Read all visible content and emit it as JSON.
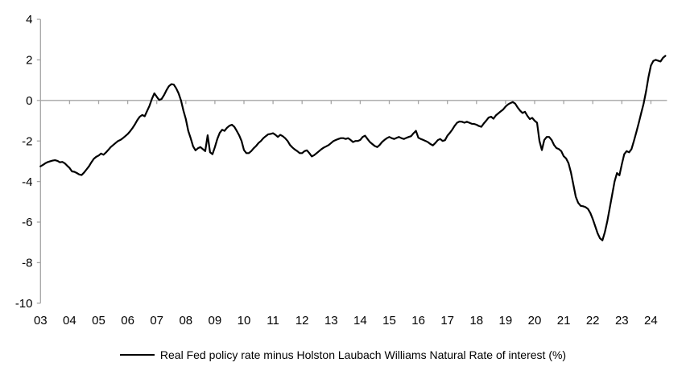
{
  "chart_data": {
    "type": "line",
    "title": "",
    "xlabel": "",
    "ylabel": "",
    "x_axis": {
      "unit": "year (2-digit labels, monthly data)",
      "start_year": 2003,
      "step_months": 1,
      "tick_labels": [
        "03",
        "04",
        "05",
        "06",
        "07",
        "08",
        "09",
        "10",
        "11",
        "12",
        "13",
        "14",
        "15",
        "16",
        "17",
        "18",
        "19",
        "20",
        "21",
        "22",
        "23",
        "24"
      ]
    },
    "y_axis": {
      "ticks": [
        4,
        2,
        0,
        -2,
        -4,
        -6,
        -8,
        -10
      ],
      "tick_labels": [
        "4",
        "2",
        "0",
        "-2",
        "-4",
        "-6",
        "-8",
        "-10"
      ],
      "range": [
        -10,
        4
      ]
    },
    "grid": {
      "zero_line_only": true
    },
    "legend_position": "bottom-center",
    "series": [
      {
        "name": "Real Fed policy rate minus Holston Laubach Williams Natural Rate of interest (%)",
        "color": "#000000",
        "values": [
          -3.25,
          -3.18,
          -3.1,
          -3.04,
          -3.0,
          -2.97,
          -2.95,
          -2.98,
          -3.05,
          -3.03,
          -3.1,
          -3.22,
          -3.33,
          -3.5,
          -3.52,
          -3.58,
          -3.65,
          -3.68,
          -3.55,
          -3.4,
          -3.25,
          -3.05,
          -2.88,
          -2.78,
          -2.72,
          -2.62,
          -2.68,
          -2.57,
          -2.44,
          -2.3,
          -2.2,
          -2.1,
          -2.0,
          -1.95,
          -1.86,
          -1.76,
          -1.66,
          -1.52,
          -1.36,
          -1.18,
          -0.97,
          -0.8,
          -0.72,
          -0.78,
          -0.52,
          -0.26,
          0.08,
          0.35,
          0.18,
          0.02,
          0.07,
          0.26,
          0.5,
          0.7,
          0.8,
          0.78,
          0.6,
          0.35,
          0.0,
          -0.5,
          -0.92,
          -1.5,
          -1.86,
          -2.26,
          -2.46,
          -2.36,
          -2.3,
          -2.4,
          -2.5,
          -1.72,
          -2.56,
          -2.65,
          -2.3,
          -1.9,
          -1.6,
          -1.45,
          -1.5,
          -1.35,
          -1.25,
          -1.2,
          -1.3,
          -1.5,
          -1.72,
          -2.0,
          -2.45,
          -2.6,
          -2.6,
          -2.5,
          -2.36,
          -2.25,
          -2.1,
          -2.0,
          -1.86,
          -1.76,
          -1.67,
          -1.65,
          -1.62,
          -1.7,
          -1.8,
          -1.7,
          -1.76,
          -1.86,
          -2.0,
          -2.2,
          -2.32,
          -2.42,
          -2.5,
          -2.6,
          -2.6,
          -2.5,
          -2.46,
          -2.6,
          -2.76,
          -2.7,
          -2.6,
          -2.5,
          -2.4,
          -2.32,
          -2.26,
          -2.2,
          -2.1,
          -2.0,
          -1.95,
          -1.9,
          -1.86,
          -1.86,
          -1.9,
          -1.86,
          -1.95,
          -2.05,
          -2.0,
          -2.0,
          -1.95,
          -1.8,
          -1.74,
          -1.9,
          -2.05,
          -2.15,
          -2.25,
          -2.3,
          -2.2,
          -2.05,
          -1.95,
          -1.86,
          -1.8,
          -1.86,
          -1.9,
          -1.85,
          -1.8,
          -1.86,
          -1.9,
          -1.85,
          -1.8,
          -1.76,
          -1.62,
          -1.5,
          -1.84,
          -1.9,
          -1.95,
          -2.0,
          -2.06,
          -2.15,
          -2.22,
          -2.1,
          -1.96,
          -1.9,
          -2.0,
          -1.96,
          -1.74,
          -1.6,
          -1.44,
          -1.25,
          -1.1,
          -1.04,
          -1.05,
          -1.1,
          -1.05,
          -1.1,
          -1.15,
          -1.16,
          -1.2,
          -1.26,
          -1.3,
          -1.14,
          -1.0,
          -0.85,
          -0.8,
          -0.9,
          -0.74,
          -0.64,
          -0.54,
          -0.45,
          -0.3,
          -0.2,
          -0.13,
          -0.08,
          -0.16,
          -0.35,
          -0.5,
          -0.62,
          -0.56,
          -0.76,
          -0.92,
          -0.86,
          -1.0,
          -1.1,
          -2.0,
          -2.45,
          -1.95,
          -1.8,
          -1.8,
          -1.95,
          -2.2,
          -2.35,
          -2.4,
          -2.5,
          -2.75,
          -2.86,
          -3.1,
          -3.55,
          -4.15,
          -4.75,
          -5.05,
          -5.2,
          -5.22,
          -5.26,
          -5.35,
          -5.55,
          -5.85,
          -6.2,
          -6.55,
          -6.8,
          -6.9,
          -6.5,
          -5.95,
          -5.3,
          -4.65,
          -4.0,
          -3.58,
          -3.7,
          -3.15,
          -2.65,
          -2.5,
          -2.56,
          -2.4,
          -2.0,
          -1.55,
          -1.1,
          -0.62,
          -0.15,
          0.45,
          1.15,
          1.72,
          1.95,
          2.0,
          1.96,
          1.92,
          2.1,
          2.2
        ]
      }
    ]
  },
  "colors": {
    "background": "#FFFFFF",
    "axis": "#A6A6A6",
    "series_line": "#000000",
    "text": "#000000"
  }
}
